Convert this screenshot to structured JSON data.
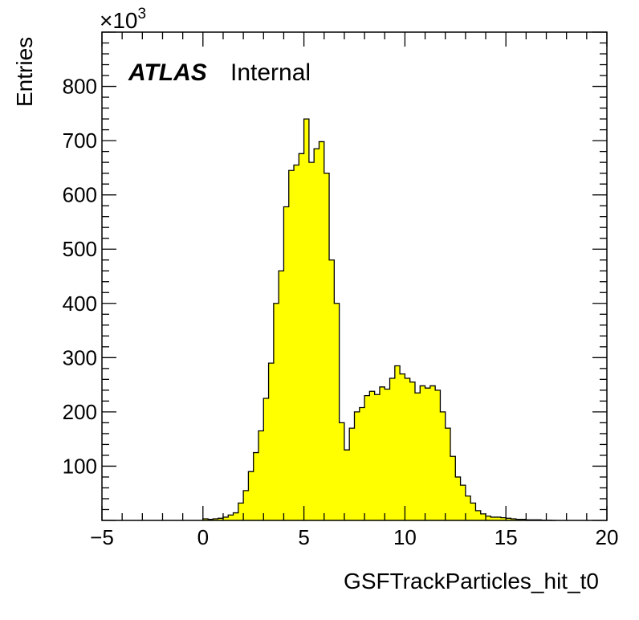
{
  "chart_data": {
    "type": "bar",
    "style": "histogram",
    "xlabel": "GSFTrackParticles_hit_t0",
    "ylabel": "Entries",
    "y_multiplier_label": "×10",
    "y_multiplier_exponent": "3",
    "xlim": [
      -5,
      20
    ],
    "ylim": [
      0,
      900
    ],
    "bin_width": 0.25,
    "y_units": "thousands of entries",
    "x_ticks": [
      -5,
      0,
      5,
      10,
      15,
      20
    ],
    "x_tick_labels": [
      "−5",
      "0",
      "5",
      "10",
      "15",
      "20"
    ],
    "y_ticks": [
      100,
      200,
      300,
      400,
      500,
      600,
      700,
      800
    ],
    "y_tick_labels": [
      "100",
      "200",
      "300",
      "400",
      "500",
      "600",
      "700",
      "800"
    ],
    "annotation": {
      "experiment": "ATLAS",
      "status": "Internal"
    },
    "fill_color": "#ffff00",
    "line_color": "#000000",
    "bins": [
      {
        "x": 0.0,
        "y": 3
      },
      {
        "x": 0.25,
        "y": 2
      },
      {
        "x": 0.5,
        "y": 3
      },
      {
        "x": 0.75,
        "y": 4
      },
      {
        "x": 1.0,
        "y": 6
      },
      {
        "x": 1.25,
        "y": 10
      },
      {
        "x": 1.5,
        "y": 14
      },
      {
        "x": 1.75,
        "y": 32
      },
      {
        "x": 2.0,
        "y": 55
      },
      {
        "x": 2.25,
        "y": 90
      },
      {
        "x": 2.5,
        "y": 125
      },
      {
        "x": 2.75,
        "y": 165
      },
      {
        "x": 3.0,
        "y": 225
      },
      {
        "x": 3.25,
        "y": 290
      },
      {
        "x": 3.5,
        "y": 400
      },
      {
        "x": 3.75,
        "y": 460
      },
      {
        "x": 4.0,
        "y": 578
      },
      {
        "x": 4.25,
        "y": 645
      },
      {
        "x": 4.5,
        "y": 655
      },
      {
        "x": 4.75,
        "y": 676
      },
      {
        "x": 5.0,
        "y": 740
      },
      {
        "x": 5.25,
        "y": 660
      },
      {
        "x": 5.5,
        "y": 685
      },
      {
        "x": 5.75,
        "y": 698
      },
      {
        "x": 6.0,
        "y": 640
      },
      {
        "x": 6.25,
        "y": 480
      },
      {
        "x": 6.5,
        "y": 400
      },
      {
        "x": 6.75,
        "y": 180
      },
      {
        "x": 7.0,
        "y": 130
      },
      {
        "x": 7.25,
        "y": 170
      },
      {
        "x": 7.5,
        "y": 200
      },
      {
        "x": 7.75,
        "y": 208
      },
      {
        "x": 8.0,
        "y": 230
      },
      {
        "x": 8.25,
        "y": 238
      },
      {
        "x": 8.5,
        "y": 232
      },
      {
        "x": 8.75,
        "y": 246
      },
      {
        "x": 9.0,
        "y": 242
      },
      {
        "x": 9.25,
        "y": 262
      },
      {
        "x": 9.5,
        "y": 285
      },
      {
        "x": 9.75,
        "y": 270
      },
      {
        "x": 10.0,
        "y": 262
      },
      {
        "x": 10.25,
        "y": 255
      },
      {
        "x": 10.5,
        "y": 235
      },
      {
        "x": 10.75,
        "y": 248
      },
      {
        "x": 11.0,
        "y": 244
      },
      {
        "x": 11.25,
        "y": 248
      },
      {
        "x": 11.5,
        "y": 240
      },
      {
        "x": 11.75,
        "y": 200
      },
      {
        "x": 12.0,
        "y": 170
      },
      {
        "x": 12.25,
        "y": 118
      },
      {
        "x": 12.5,
        "y": 80
      },
      {
        "x": 12.75,
        "y": 65
      },
      {
        "x": 13.0,
        "y": 45
      },
      {
        "x": 13.25,
        "y": 32
      },
      {
        "x": 13.5,
        "y": 18
      },
      {
        "x": 13.75,
        "y": 12
      },
      {
        "x": 14.0,
        "y": 8
      },
      {
        "x": 14.25,
        "y": 6
      },
      {
        "x": 14.5,
        "y": 6
      },
      {
        "x": 14.75,
        "y": 5
      },
      {
        "x": 15.0,
        "y": 4
      },
      {
        "x": 15.25,
        "y": 3
      },
      {
        "x": 15.5,
        "y": 2
      },
      {
        "x": 15.75,
        "y": 2
      },
      {
        "x": 16.0,
        "y": 1
      },
      {
        "x": 16.25,
        "y": 1
      },
      {
        "x": 16.5,
        "y": 1
      },
      {
        "x": 16.75,
        "y": 0.5
      },
      {
        "x": 17.0,
        "y": 0.3
      },
      {
        "x": 17.25,
        "y": 0
      }
    ]
  }
}
